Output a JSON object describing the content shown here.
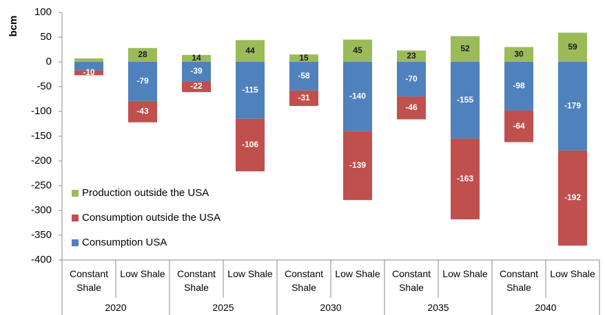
{
  "chart_data": {
    "type": "stacked_bar",
    "y_label": "bcm",
    "categories": [
      "Constant Shale",
      "Low Shale",
      "Constant Shale",
      "Low Shale",
      "Constant Shale",
      "Low Shale",
      "Constant Shale",
      "Low Shale",
      "Constant Shale",
      "Low Shale"
    ],
    "groups": [
      "2020",
      "2025",
      "2030",
      "2035",
      "2040"
    ],
    "series": [
      {
        "name": "Consumption USA",
        "color": "#4f81bd",
        "label_color": "#ffffff",
        "values": [
          -17,
          -79,
          -39,
          -115,
          -58,
          -140,
          -70,
          -155,
          -98,
          -179
        ],
        "value_labels": [
          null,
          "-79",
          "-39",
          "-115",
          "-58",
          "-140",
          "-70",
          "-155",
          "-98",
          "-179"
        ]
      },
      {
        "name": "Consumption outside the USA",
        "color": "#c0504d",
        "label_color": "#ffffff",
        "values": [
          -10,
          -43,
          -22,
          -106,
          -31,
          -139,
          -46,
          -163,
          -64,
          -192
        ],
        "value_labels": [
          "-10",
          "-43",
          "-22",
          "-106",
          "-31",
          "-139",
          "-46",
          "-163",
          "-64",
          "-192"
        ]
      },
      {
        "name": "Production outside the USA",
        "color": "#9bbb59",
        "label_color": "#1a1a1a",
        "values": [
          7,
          28,
          14,
          44,
          15,
          45,
          23,
          52,
          30,
          59
        ],
        "value_labels": [
          null,
          "28",
          "14",
          "44",
          "15",
          "45",
          "23",
          "52",
          "30",
          "59"
        ]
      }
    ],
    "ylim": [
      -400,
      100
    ],
    "yticks": [
      100,
      50,
      0,
      -50,
      -100,
      -150,
      -200,
      -250,
      -300,
      -350,
      -400
    ],
    "grid": false,
    "legend": "lower left"
  }
}
